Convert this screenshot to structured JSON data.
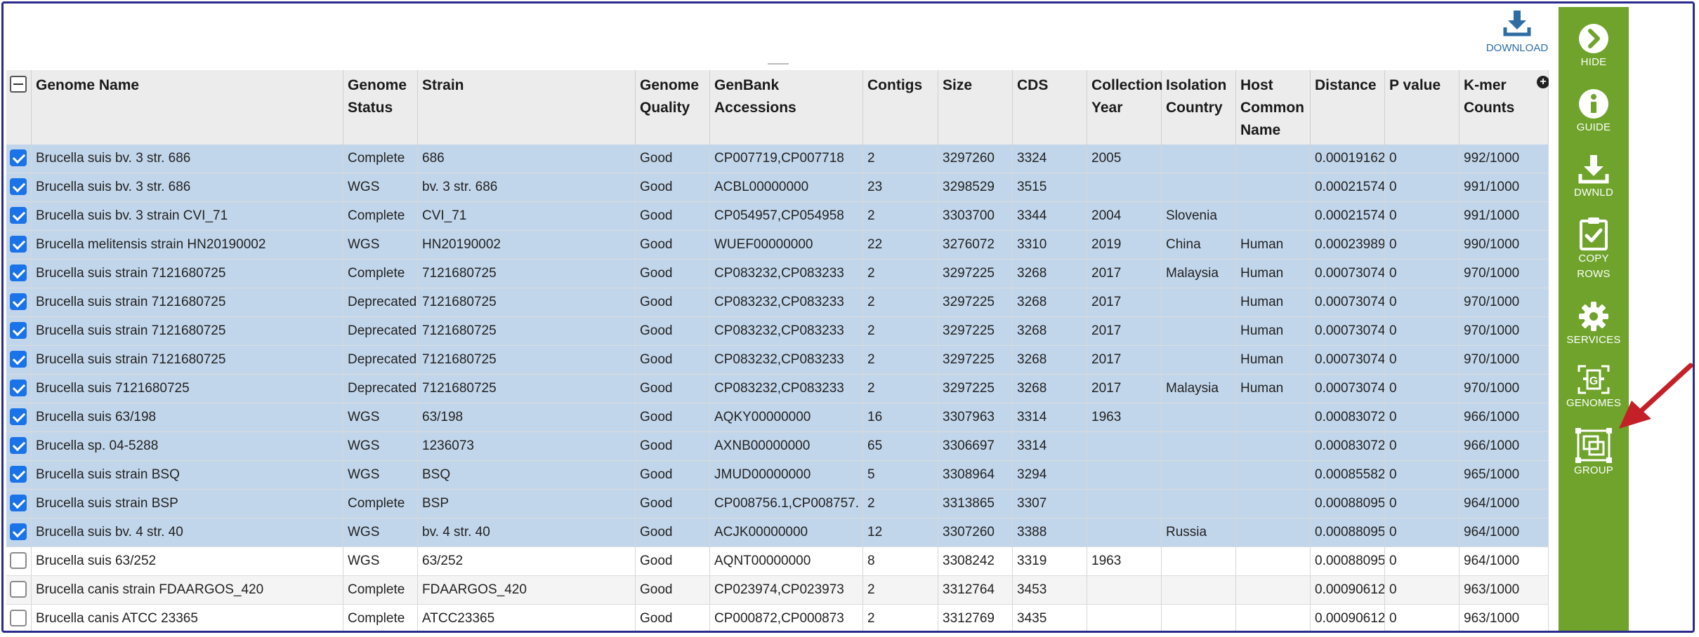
{
  "toolbar": {
    "download_label": "DOWNLOAD"
  },
  "columns": [
    "Genome Name",
    "Genome Status",
    "Strain",
    "Genome Quality",
    "GenBank Accessions",
    "Contigs",
    "Size",
    "CDS",
    "Collection Year",
    "Isolation Country",
    "Host Common Name",
    "Distance",
    "P value",
    "K-mer Counts"
  ],
  "rows": [
    {
      "selected": true,
      "cells": [
        "Brucella suis bv. 3 str. 686",
        "Complete",
        "686",
        "Good",
        "CP007719,CP007718",
        "2",
        "3297260",
        "3324",
        "2005",
        "",
        "",
        "0.00019162",
        "0",
        "992/1000"
      ]
    },
    {
      "selected": true,
      "cells": [
        "Brucella suis bv. 3 str. 686",
        "WGS",
        "bv. 3 str. 686",
        "Good",
        "ACBL00000000",
        "23",
        "3298529",
        "3515",
        "",
        "",
        "",
        "0.00021574",
        "0",
        "991/1000"
      ]
    },
    {
      "selected": true,
      "cells": [
        "Brucella suis bv. 3 strain CVI_71",
        "Complete",
        "CVI_71",
        "Good",
        "CP054957,CP054958",
        "2",
        "3303700",
        "3344",
        "2004",
        "Slovenia",
        "",
        "0.00021574",
        "0",
        "991/1000"
      ]
    },
    {
      "selected": true,
      "cells": [
        "Brucella melitensis strain HN20190002",
        "WGS",
        "HN20190002",
        "Good",
        "WUEF00000000",
        "22",
        "3276072",
        "3310",
        "2019",
        "China",
        "Human",
        "0.00023989",
        "0",
        "990/1000"
      ]
    },
    {
      "selected": true,
      "cells": [
        "Brucella suis strain 7121680725",
        "Complete",
        "7121680725",
        "Good",
        "CP083232,CP083233",
        "2",
        "3297225",
        "3268",
        "2017",
        "Malaysia",
        "Human",
        "0.00073074",
        "0",
        "970/1000"
      ]
    },
    {
      "selected": true,
      "cells": [
        "Brucella suis strain 7121680725",
        "Deprecated",
        "7121680725",
        "Good",
        "CP083232,CP083233",
        "2",
        "3297225",
        "3268",
        "2017",
        "",
        "Human",
        "0.00073074",
        "0",
        "970/1000"
      ]
    },
    {
      "selected": true,
      "cells": [
        "Brucella suis strain 7121680725",
        "Deprecated",
        "7121680725",
        "Good",
        "CP083232,CP083233",
        "2",
        "3297225",
        "3268",
        "2017",
        "",
        "Human",
        "0.00073074",
        "0",
        "970/1000"
      ]
    },
    {
      "selected": true,
      "cells": [
        "Brucella suis strain 7121680725",
        "Deprecated",
        "7121680725",
        "Good",
        "CP083232,CP083233",
        "2",
        "3297225",
        "3268",
        "2017",
        "",
        "Human",
        "0.00073074",
        "0",
        "970/1000"
      ]
    },
    {
      "selected": true,
      "cells": [
        "Brucella suis 7121680725",
        "Deprecated",
        "7121680725",
        "Good",
        "CP083232,CP083233",
        "2",
        "3297225",
        "3268",
        "2017",
        "Malaysia",
        "Human",
        "0.00073074",
        "0",
        "970/1000"
      ]
    },
    {
      "selected": true,
      "cells": [
        "Brucella suis 63/198",
        "WGS",
        "63/198",
        "Good",
        "AQKY00000000",
        "16",
        "3307963",
        "3314",
        "1963",
        "",
        "",
        "0.00083072",
        "0",
        "966/1000"
      ]
    },
    {
      "selected": true,
      "cells": [
        "Brucella sp. 04-5288",
        "WGS",
        "1236073",
        "Good",
        "AXNB00000000",
        "65",
        "3306697",
        "3314",
        "",
        "",
        "",
        "0.00083072",
        "0",
        "966/1000"
      ]
    },
    {
      "selected": true,
      "cells": [
        "Brucella suis strain BSQ",
        "WGS",
        "BSQ",
        "Good",
        "JMUD00000000",
        "5",
        "3308964",
        "3294",
        "",
        "",
        "",
        "0.00085582",
        "0",
        "965/1000"
      ]
    },
    {
      "selected": true,
      "cells": [
        "Brucella suis strain BSP",
        "Complete",
        "BSP",
        "Good",
        "CP008756.1,CP008757.",
        "2",
        "3313865",
        "3307",
        "",
        "",
        "",
        "0.00088095",
        "0",
        "964/1000"
      ]
    },
    {
      "selected": true,
      "cells": [
        "Brucella suis bv. 4 str. 40",
        "WGS",
        "bv. 4 str. 40",
        "Good",
        "ACJK00000000",
        "12",
        "3307260",
        "3388",
        "",
        "Russia",
        "",
        "0.00088095",
        "0",
        "964/1000"
      ]
    },
    {
      "selected": false,
      "cells": [
        "Brucella suis 63/252",
        "WGS",
        "63/252",
        "Good",
        "AQNT00000000",
        "8",
        "3308242",
        "3319",
        "1963",
        "",
        "",
        "0.00088095",
        "0",
        "964/1000"
      ]
    },
    {
      "selected": false,
      "cells": [
        "Brucella canis strain FDAARGOS_420",
        "Complete",
        "FDAARGOS_420",
        "Good",
        "CP023974,CP023973",
        "2",
        "3312764",
        "3453",
        "",
        "",
        "",
        "0.00090612",
        "0",
        "963/1000"
      ]
    },
    {
      "selected": false,
      "cells": [
        "Brucella canis ATCC 23365",
        "Complete",
        "ATCC23365",
        "Good",
        "CP000872,CP000873",
        "2",
        "3312769",
        "3435",
        "",
        "",
        "",
        "0.00090612",
        "0",
        "963/1000"
      ]
    }
  ],
  "sidebar": [
    {
      "label": "HIDE",
      "icon": "chevron-right-circle-icon"
    },
    {
      "label": "GUIDE",
      "icon": "info-circle-icon"
    },
    {
      "label": "DWNLD",
      "icon": "download-icon"
    },
    {
      "label": "COPY\nROWS",
      "icon": "clipboard-check-icon"
    },
    {
      "label": "SERVICES",
      "icon": "gear-icon"
    },
    {
      "label": "GENOMES",
      "icon": "genome-scan-icon"
    },
    {
      "label": "GROUP",
      "icon": "group-select-icon"
    }
  ],
  "colors": {
    "sidebar_bg": "#6fa32b",
    "selected_row": "#c2d6eb",
    "link_blue": "#2e6da4",
    "arrow": "#c42027"
  }
}
